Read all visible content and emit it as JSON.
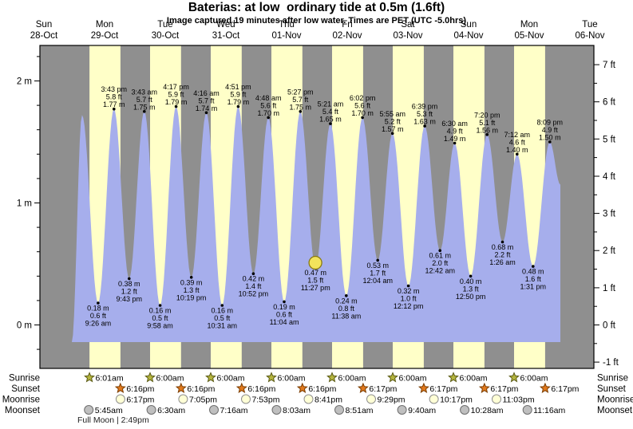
{
  "title": "Baterias: at low  ordinary tide at 0.5m (1.6ft)",
  "subtitle": "Image captured 19 minutes after low water. Times are PET (UTC -5.0hrs)",
  "colors": {
    "night_band": "#8f8f8f",
    "day_band": "#ffffc8",
    "tide_fill": "#a6aeec",
    "date_label": "#ff0000",
    "plot_border": "#000000",
    "current_marker_fill": "#f2e35c",
    "current_marker_stroke": "#8a7a10"
  },
  "chart_data": {
    "type": "area",
    "title": "Baterias: at low  ordinary tide at 0.5m (1.6ft)",
    "subtitle": "Image captured 19 minutes after low water. Times are PET (UTC -5.0hrs)",
    "x_axis_days": [
      {
        "weekday": "Sun",
        "date": "28-Oct"
      },
      {
        "weekday": "Mon",
        "date": "29-Oct"
      },
      {
        "weekday": "Tue",
        "date": "30-Oct"
      },
      {
        "weekday": "Wed",
        "date": "31-Oct"
      },
      {
        "weekday": "Thu",
        "date": "01-Nov"
      },
      {
        "weekday": "Fri",
        "date": "02-Nov"
      },
      {
        "weekday": "Sat",
        "date": "03-Nov"
      },
      {
        "weekday": "Sun",
        "date": "04-Nov"
      },
      {
        "weekday": "Mon",
        "date": "05-Nov"
      },
      {
        "weekday": "Tue",
        "date": "06-Nov"
      }
    ],
    "y_axis_left": {
      "unit": "m",
      "major_ticks": [
        0,
        1,
        2
      ],
      "minor_step": 0.2,
      "labels": [
        "0 m",
        "1 m",
        "2 m"
      ]
    },
    "y_axis_right": {
      "unit": "ft",
      "major_ticks": [
        -1,
        0,
        1,
        2,
        3,
        4,
        5,
        6,
        7
      ],
      "labels": [
        "-1 ft",
        "0 ft",
        "1 ft",
        "2 ft",
        "3 ft",
        "4 ft",
        "5 ft",
        "6 ft",
        "7 ft"
      ]
    },
    "series_start": {
      "day": 0,
      "hour": 23.05,
      "height_m": -0.14
    },
    "series_end": {
      "day": 8,
      "hour": 24.31,
      "height_m": 1.15
    },
    "tide_events": [
      {
        "type": "high",
        "day": 1,
        "hour": 3.083,
        "height_m": 1.72,
        "labeled": false
      },
      {
        "type": "low",
        "day": 1,
        "hour": 9.433,
        "height_m": 0.18,
        "m": "0.18 m",
        "ft": "0.6 ft",
        "time": "9:26 am"
      },
      {
        "type": "high",
        "day": 1,
        "hour": 15.717,
        "height_m": 1.77,
        "m": "1.77 m",
        "ft": "5.8 ft",
        "time": "3:43 pm"
      },
      {
        "type": "low",
        "day": 1,
        "hour": 21.717,
        "height_m": 0.38,
        "m": "0.38 m",
        "ft": "1.2 ft",
        "time": "9:43 pm"
      },
      {
        "type": "high",
        "day": 2,
        "hour": 3.717,
        "height_m": 1.75,
        "m": "1.75 m",
        "ft": "5.7 ft",
        "time": "3:43 am"
      },
      {
        "type": "low",
        "day": 2,
        "hour": 9.967,
        "height_m": 0.16,
        "m": "0.16 m",
        "ft": "0.5 ft",
        "time": "9:58 am"
      },
      {
        "type": "high",
        "day": 2,
        "hour": 16.283,
        "height_m": 1.79,
        "m": "1.79 m",
        "ft": "5.9 ft",
        "time": "4:17 pm"
      },
      {
        "type": "low",
        "day": 2,
        "hour": 22.317,
        "height_m": 0.39,
        "m": "0.39 m",
        "ft": "1.3 ft",
        "time": "10:19 pm"
      },
      {
        "type": "high",
        "day": 3,
        "hour": 4.267,
        "height_m": 1.74,
        "m": "1.74 m",
        "ft": "5.7 ft",
        "time": "4:16 am"
      },
      {
        "type": "low",
        "day": 3,
        "hour": 10.517,
        "height_m": 0.16,
        "m": "0.16 m",
        "ft": "0.5 ft",
        "time": "10:31 am"
      },
      {
        "type": "high",
        "day": 3,
        "hour": 16.85,
        "height_m": 1.79,
        "m": "1.79 m",
        "ft": "5.9 ft",
        "time": "4:51 pm"
      },
      {
        "type": "low",
        "day": 3,
        "hour": 22.867,
        "height_m": 0.42,
        "m": "0.42 m",
        "ft": "1.4 ft",
        "time": "10:52 pm"
      },
      {
        "type": "high",
        "day": 4,
        "hour": 4.8,
        "height_m": 1.7,
        "m": "1.70 m",
        "ft": "5.6 ft",
        "time": "4:48 am"
      },
      {
        "type": "low",
        "day": 4,
        "hour": 11.067,
        "height_m": 0.19,
        "m": "0.19 m",
        "ft": "0.6 ft",
        "time": "11:04 am"
      },
      {
        "type": "high",
        "day": 4,
        "hour": 17.45,
        "height_m": 1.75,
        "m": "1.75 m",
        "ft": "5.7 ft",
        "time": "5:27 pm"
      },
      {
        "type": "low",
        "day": 4,
        "hour": 23.45,
        "height_m": 0.47,
        "m": "0.47 m",
        "ft": "1.5 ft",
        "time": "11:27 pm"
      },
      {
        "type": "high",
        "day": 5,
        "hour": 5.35,
        "height_m": 1.65,
        "m": "1.65 m",
        "ft": "5.4 ft",
        "time": "5:21 am"
      },
      {
        "type": "low",
        "day": 5,
        "hour": 11.633,
        "height_m": 0.24,
        "m": "0.24 m",
        "ft": "0.8 ft",
        "time": "11:38 am"
      },
      {
        "type": "high",
        "day": 5,
        "hour": 18.033,
        "height_m": 1.7,
        "m": "1.70 m",
        "ft": "5.6 ft",
        "time": "6:02 pm"
      },
      {
        "type": "low",
        "day": 6,
        "hour": 0.067,
        "height_m": 0.53,
        "m": "0.53 m",
        "ft": "1.7 ft",
        "time": "12:04 am"
      },
      {
        "type": "high",
        "day": 6,
        "hour": 5.917,
        "height_m": 1.57,
        "m": "1.57 m",
        "ft": "5.2 ft",
        "time": "5:55 am"
      },
      {
        "type": "low",
        "day": 6,
        "hour": 12.2,
        "height_m": 0.32,
        "m": "0.32 m",
        "ft": "1.0 ft",
        "time": "12:12 pm"
      },
      {
        "type": "high",
        "day": 6,
        "hour": 18.65,
        "height_m": 1.63,
        "m": "1.63 m",
        "ft": "5.3 ft",
        "time": "6:39 pm"
      },
      {
        "type": "low",
        "day": 7,
        "hour": 0.7,
        "height_m": 0.61,
        "m": "0.61 m",
        "ft": "2.0 ft",
        "time": "12:42 am"
      },
      {
        "type": "high",
        "day": 7,
        "hour": 6.5,
        "height_m": 1.49,
        "m": "1.49 m",
        "ft": "4.9 ft",
        "time": "6:30 am"
      },
      {
        "type": "low",
        "day": 7,
        "hour": 12.833,
        "height_m": 0.4,
        "m": "0.40 m",
        "ft": "1.3 ft",
        "time": "12:50 pm"
      },
      {
        "type": "high",
        "day": 7,
        "hour": 19.333,
        "height_m": 1.56,
        "m": "1.56 m",
        "ft": "5.1 ft",
        "time": "7:20 pm"
      },
      {
        "type": "low",
        "day": 8,
        "hour": 1.433,
        "height_m": 0.68,
        "m": "0.68 m",
        "ft": "2.2 ft",
        "time": "1:26 am"
      },
      {
        "type": "high",
        "day": 8,
        "hour": 7.2,
        "height_m": 1.4,
        "m": "1.40 m",
        "ft": "4.6 ft",
        "time": "7:12 am"
      },
      {
        "type": "low",
        "day": 8,
        "hour": 13.517,
        "height_m": 0.48,
        "m": "0.48 m",
        "ft": "1.6 ft",
        "time": "1:31 pm"
      },
      {
        "type": "high",
        "day": 8,
        "hour": 20.15,
        "height_m": 1.5,
        "m": "1.50 m",
        "ft": "4.9 ft",
        "time": "8:09 pm"
      }
    ],
    "current_marker": {
      "day": 4,
      "hour": 23.4,
      "height_m": 0.51
    },
    "astro_rows": [
      {
        "id": "sunrise",
        "label": "Sunrise",
        "shape": "star",
        "fill": "#b4b43e",
        "stroke": "#5a5a14",
        "events": [
          {
            "day": 1,
            "hour": 6.017,
            "time": "6:01am"
          },
          {
            "day": 2,
            "hour": 6.0,
            "time": "6:00am"
          },
          {
            "day": 3,
            "hour": 6.0,
            "time": "6:00am"
          },
          {
            "day": 4,
            "hour": 6.0,
            "time": "6:00am"
          },
          {
            "day": 5,
            "hour": 6.0,
            "time": "6:00am"
          },
          {
            "day": 6,
            "hour": 6.0,
            "time": "6:00am"
          },
          {
            "day": 7,
            "hour": 6.0,
            "time": "6:00am"
          },
          {
            "day": 8,
            "hour": 6.0,
            "time": "6:00am"
          }
        ]
      },
      {
        "id": "sunset",
        "label": "Sunset",
        "shape": "star",
        "fill": "#e1791d",
        "stroke": "#7a3c00",
        "events": [
          {
            "day": 1,
            "hour": 18.267,
            "time": "6:16pm"
          },
          {
            "day": 2,
            "hour": 18.267,
            "time": "6:16pm"
          },
          {
            "day": 3,
            "hour": 18.267,
            "time": "6:16pm"
          },
          {
            "day": 4,
            "hour": 18.267,
            "time": "6:16pm"
          },
          {
            "day": 5,
            "hour": 18.283,
            "time": "6:17pm"
          },
          {
            "day": 6,
            "hour": 18.283,
            "time": "6:17pm"
          },
          {
            "day": 7,
            "hour": 18.283,
            "time": "6:17pm"
          },
          {
            "day": 8,
            "hour": 18.283,
            "time": "6:17pm"
          }
        ]
      },
      {
        "id": "moonrise",
        "label": "Moonrise",
        "shape": "circle",
        "fill": "#ffffd6",
        "stroke": "#8f8f8f",
        "events": [
          {
            "day": 1,
            "hour": 18.283,
            "time": "6:17pm"
          },
          {
            "day": 2,
            "hour": 19.083,
            "time": "7:05pm"
          },
          {
            "day": 3,
            "hour": 19.883,
            "time": "7:53pm"
          },
          {
            "day": 4,
            "hour": 20.683,
            "time": "8:41pm"
          },
          {
            "day": 5,
            "hour": 21.483,
            "time": "9:29pm"
          },
          {
            "day": 6,
            "hour": 22.283,
            "time": "10:17pm"
          },
          {
            "day": 7,
            "hour": 23.05,
            "time": "11:03pm"
          }
        ]
      },
      {
        "id": "moonset",
        "label": "Moonset",
        "shape": "circle",
        "fill": "#bfbfbf",
        "stroke": "#6e6e6e",
        "events": [
          {
            "day": 1,
            "hour": 5.75,
            "time": "5:45am"
          },
          {
            "day": 2,
            "hour": 6.5,
            "time": "6:30am"
          },
          {
            "day": 3,
            "hour": 7.267,
            "time": "7:16am"
          },
          {
            "day": 4,
            "hour": 8.05,
            "time": "8:03am"
          },
          {
            "day": 5,
            "hour": 8.85,
            "time": "8:51am"
          },
          {
            "day": 6,
            "hour": 9.667,
            "time": "9:40am"
          },
          {
            "day": 7,
            "hour": 10.467,
            "time": "10:28am"
          },
          {
            "day": 8,
            "hour": 11.267,
            "time": "11:16am"
          }
        ]
      }
    ],
    "full_moon_note": "Full Moon | 2:49pm"
  }
}
